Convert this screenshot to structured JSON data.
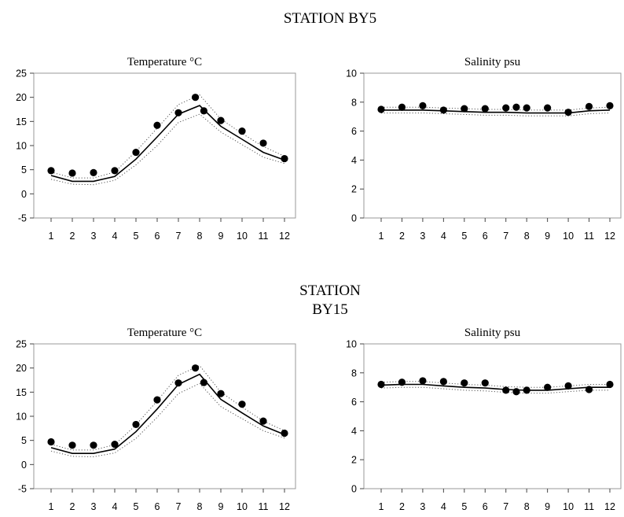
{
  "stations": [
    {
      "title_lines": [
        "STATION BY5"
      ]
    },
    {
      "title_lines": [
        "STATION",
        "BY15"
      ]
    }
  ],
  "chart_data": [
    {
      "type": "line",
      "station": 0,
      "title": "Temperature   °C",
      "categories": [
        "1",
        "2",
        "3",
        "4",
        "5",
        "6",
        "7",
        "8",
        "9",
        "10",
        "11",
        "12"
      ],
      "ylim": [
        -5,
        25
      ],
      "yticks": [
        -5,
        0,
        5,
        10,
        15,
        20,
        25
      ],
      "grid": false,
      "series": [
        {
          "style": "solid",
          "values": [
            3.8,
            2.6,
            2.6,
            3.6,
            7.2,
            11.8,
            16.5,
            18.3,
            14.0,
            11.3,
            8.6,
            7.0
          ]
        },
        {
          "style": "dotted-upper",
          "values": [
            4.5,
            3.3,
            3.3,
            4.5,
            8.8,
            13.6,
            18.5,
            20.5,
            15.5,
            12.5,
            9.8,
            7.8
          ]
        },
        {
          "style": "dotted-lower",
          "values": [
            3.0,
            2.0,
            1.9,
            2.8,
            6.0,
            10.0,
            14.8,
            16.5,
            12.8,
            10.2,
            7.6,
            6.3
          ]
        },
        {
          "style": "points",
          "values": [
            4.8,
            4.3,
            4.4,
            4.8,
            8.6,
            14.2,
            16.8,
            20.0,
            17.2,
            15.2,
            13.0,
            10.5,
            7.3
          ],
          "x": [
            1,
            2,
            3,
            4,
            5,
            6,
            7,
            7.8,
            8.2,
            9,
            10,
            11,
            12
          ]
        }
      ]
    },
    {
      "type": "line",
      "station": 0,
      "title": "Salinity    psu",
      "categories": [
        "1",
        "2",
        "3",
        "4",
        "5",
        "6",
        "7",
        "8",
        "9",
        "10",
        "11",
        "12"
      ],
      "ylim": [
        0,
        10
      ],
      "yticks": [
        0,
        2,
        4,
        6,
        8,
        10
      ],
      "grid": false,
      "series": [
        {
          "style": "solid",
          "values": [
            7.45,
            7.45,
            7.45,
            7.4,
            7.35,
            7.3,
            7.3,
            7.25,
            7.25,
            7.25,
            7.4,
            7.45
          ]
        },
        {
          "style": "dotted-upper",
          "values": [
            7.65,
            7.65,
            7.65,
            7.6,
            7.55,
            7.5,
            7.5,
            7.45,
            7.45,
            7.45,
            7.6,
            7.65
          ]
        },
        {
          "style": "dotted-lower",
          "values": [
            7.25,
            7.25,
            7.25,
            7.2,
            7.15,
            7.1,
            7.1,
            7.05,
            7.05,
            7.05,
            7.2,
            7.25
          ]
        },
        {
          "style": "points",
          "values": [
            7.5,
            7.65,
            7.75,
            7.45,
            7.55,
            7.55,
            7.6,
            7.65,
            7.6,
            7.6,
            7.3,
            7.7,
            7.75
          ],
          "x": [
            1,
            2,
            3,
            4,
            5,
            6,
            7,
            7.5,
            8,
            9,
            10,
            11,
            12
          ]
        }
      ]
    },
    {
      "type": "line",
      "station": 1,
      "title": "Temperature   °C",
      "categories": [
        "1",
        "2",
        "3",
        "4",
        "5",
        "6",
        "7",
        "8",
        "9",
        "10",
        "11",
        "12"
      ],
      "ylim": [
        -5,
        25
      ],
      "yticks": [
        -5,
        0,
        5,
        10,
        15,
        20,
        25
      ],
      "grid": false,
      "series": [
        {
          "style": "solid",
          "values": [
            3.5,
            2.3,
            2.3,
            3.2,
            6.8,
            11.5,
            16.6,
            18.7,
            13.5,
            10.7,
            8.0,
            6.2
          ]
        },
        {
          "style": "dotted-upper",
          "values": [
            4.2,
            3.0,
            3.0,
            4.1,
            8.2,
            13.2,
            18.5,
            20.5,
            15.0,
            11.9,
            9.0,
            7.0
          ]
        },
        {
          "style": "dotted-lower",
          "values": [
            2.8,
            1.7,
            1.6,
            2.4,
            5.4,
            9.8,
            14.7,
            16.8,
            12.0,
            9.5,
            7.0,
            5.5
          ]
        },
        {
          "style": "points",
          "values": [
            4.7,
            4.0,
            4.0,
            4.2,
            8.3,
            13.4,
            16.9,
            20.0,
            17.0,
            14.7,
            12.5,
            9.0,
            6.5
          ],
          "x": [
            1,
            2,
            3,
            4,
            5,
            6,
            7,
            7.8,
            8.2,
            9,
            10,
            11,
            12
          ]
        }
      ]
    },
    {
      "type": "line",
      "station": 1,
      "title": "Salinity    psu",
      "categories": [
        "1",
        "2",
        "3",
        "4",
        "5",
        "6",
        "7",
        "8",
        "9",
        "10",
        "11",
        "12"
      ],
      "ylim": [
        0,
        10
      ],
      "yticks": [
        0,
        2,
        4,
        6,
        8,
        10
      ],
      "grid": false,
      "series": [
        {
          "style": "solid",
          "values": [
            7.15,
            7.2,
            7.2,
            7.1,
            7.0,
            6.95,
            6.85,
            6.8,
            6.8,
            6.9,
            7.0,
            7.0
          ]
        },
        {
          "style": "dotted-upper",
          "values": [
            7.35,
            7.4,
            7.4,
            7.3,
            7.2,
            7.15,
            7.05,
            7.0,
            7.0,
            7.1,
            7.2,
            7.2
          ]
        },
        {
          "style": "dotted-lower",
          "values": [
            6.95,
            7.0,
            7.0,
            6.9,
            6.8,
            6.75,
            6.65,
            6.6,
            6.6,
            6.7,
            6.8,
            6.8
          ]
        },
        {
          "style": "points",
          "values": [
            7.2,
            7.35,
            7.45,
            7.4,
            7.3,
            7.3,
            6.8,
            6.7,
            6.8,
            7.0,
            7.1,
            6.85,
            7.2
          ],
          "x": [
            1,
            2,
            3,
            4,
            5,
            6,
            7,
            7.5,
            8,
            9,
            10,
            11,
            12
          ]
        }
      ]
    }
  ]
}
